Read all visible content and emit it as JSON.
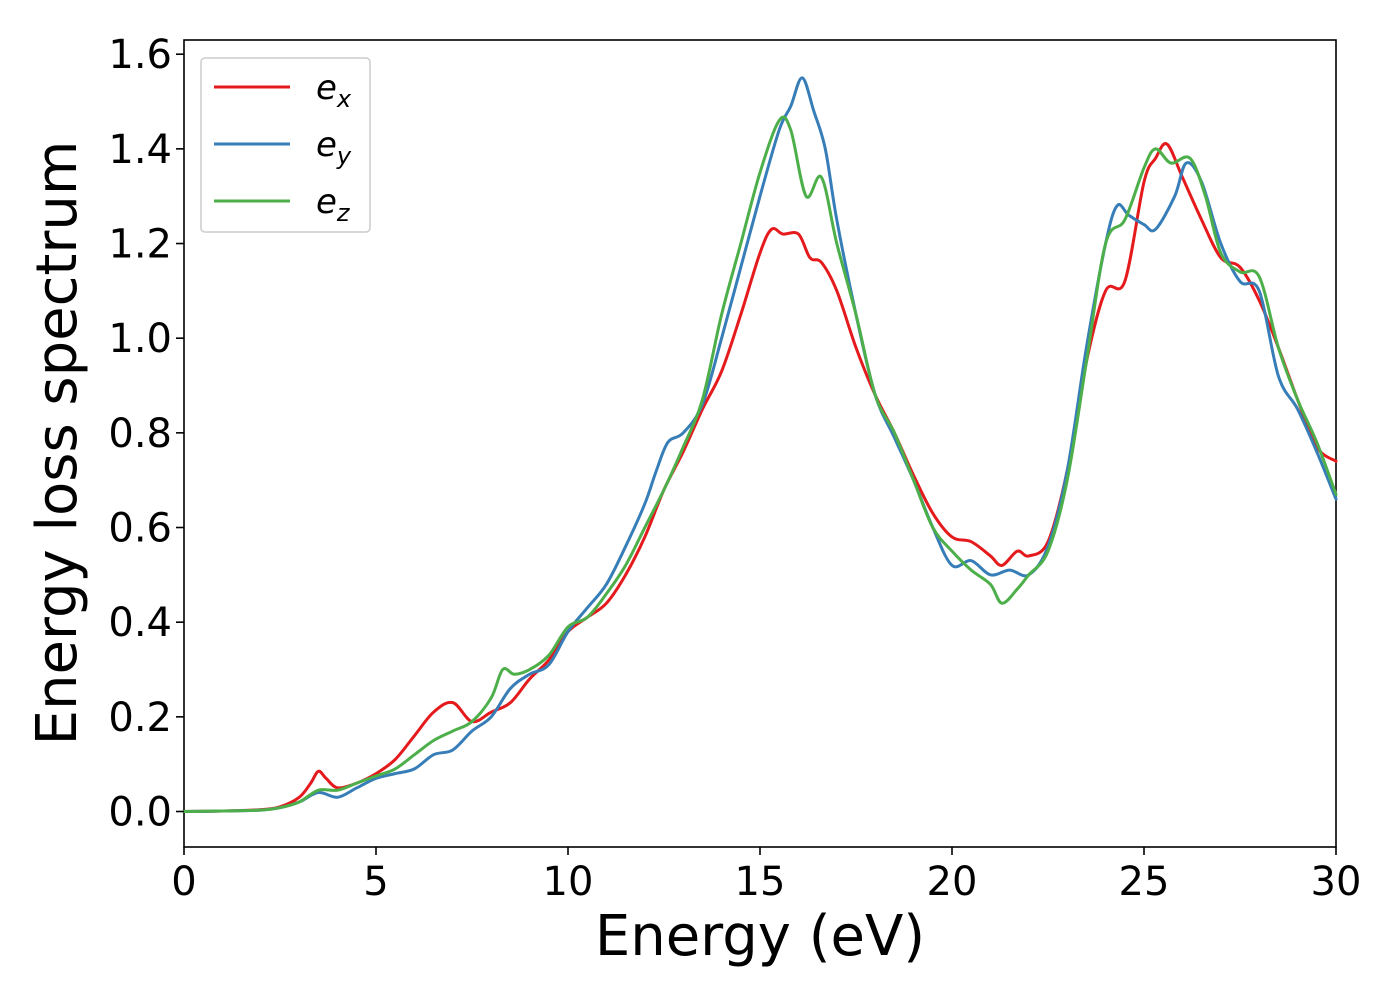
{
  "chart_data": {
    "type": "line",
    "title": "",
    "xlabel": "Energy (eV)",
    "ylabel": "Energy loss spectrum",
    "xlim": [
      0,
      30
    ],
    "ylim": [
      -0.075,
      1.63
    ],
    "xticks": [
      0,
      5,
      10,
      15,
      20,
      25,
      30
    ],
    "xtick_labels": [
      "0",
      "5",
      "10",
      "15",
      "20",
      "25",
      "30"
    ],
    "yticks": [
      0.0,
      0.2,
      0.4,
      0.6,
      0.8,
      1.0,
      1.2,
      1.4,
      1.6
    ],
    "ytick_labels": [
      "0.0",
      "0.2",
      "0.4",
      "0.6",
      "0.8",
      "1.0",
      "1.2",
      "1.4",
      "1.6"
    ],
    "grid": false,
    "legend_position": "top-left",
    "series": [
      {
        "name": "e_x",
        "label_base": "e",
        "label_sub": "x",
        "color": "#e41a1c",
        "x": [
          0,
          1,
          2,
          2.5,
          3,
          3.3,
          3.5,
          3.7,
          4,
          4.5,
          5,
          5.5,
          6,
          6.5,
          7,
          7.5,
          8,
          8.5,
          9,
          9.5,
          10,
          10.5,
          11,
          11.5,
          12,
          12.5,
          13,
          13.5,
          14,
          14.5,
          15,
          15.3,
          15.6,
          16,
          16.3,
          16.6,
          17,
          17.5,
          18,
          18.5,
          19,
          19.5,
          20,
          20.5,
          21,
          21.3,
          21.7,
          22,
          22.5,
          23,
          23.5,
          24,
          24.5,
          25,
          25.3,
          25.6,
          26,
          26.5,
          27,
          27.5,
          28,
          28.5,
          29,
          29.5,
          30
        ],
        "y": [
          0,
          0.001,
          0.004,
          0.01,
          0.03,
          0.06,
          0.085,
          0.07,
          0.05,
          0.06,
          0.08,
          0.11,
          0.16,
          0.21,
          0.23,
          0.19,
          0.21,
          0.23,
          0.28,
          0.32,
          0.38,
          0.41,
          0.44,
          0.5,
          0.58,
          0.68,
          0.76,
          0.85,
          0.93,
          1.05,
          1.18,
          1.23,
          1.22,
          1.22,
          1.17,
          1.16,
          1.1,
          0.98,
          0.88,
          0.8,
          0.71,
          0.63,
          0.58,
          0.57,
          0.54,
          0.52,
          0.55,
          0.54,
          0.57,
          0.72,
          0.95,
          1.1,
          1.12,
          1.33,
          1.38,
          1.41,
          1.34,
          1.25,
          1.17,
          1.15,
          1.08,
          0.98,
          0.87,
          0.77,
          0.74
        ]
      },
      {
        "name": "e_y",
        "label_base": "e",
        "label_sub": "y",
        "color": "#377eb8",
        "x": [
          0,
          1,
          2,
          2.5,
          3,
          3.5,
          4,
          4.5,
          5,
          5.5,
          6,
          6.5,
          7,
          7.5,
          8,
          8.5,
          9,
          9.5,
          10,
          10.5,
          11,
          11.5,
          12,
          12.3,
          12.6,
          13,
          13.5,
          14,
          14.5,
          15,
          15.5,
          15.8,
          16.1,
          16.4,
          16.7,
          17,
          17.5,
          18,
          18.5,
          19,
          19.5,
          20,
          20.5,
          21,
          21.5,
          22,
          22.5,
          23,
          23.5,
          24,
          24.3,
          24.6,
          25,
          25.3,
          25.8,
          26.1,
          26.5,
          27,
          27.5,
          28,
          28.5,
          29,
          29.5,
          30
        ],
        "y": [
          0,
          0.001,
          0.003,
          0.008,
          0.02,
          0.04,
          0.03,
          0.05,
          0.07,
          0.08,
          0.09,
          0.12,
          0.13,
          0.17,
          0.2,
          0.26,
          0.29,
          0.31,
          0.38,
          0.43,
          0.48,
          0.56,
          0.65,
          0.72,
          0.78,
          0.8,
          0.86,
          1.0,
          1.15,
          1.3,
          1.44,
          1.49,
          1.55,
          1.48,
          1.4,
          1.25,
          1.05,
          0.88,
          0.79,
          0.7,
          0.6,
          0.52,
          0.53,
          0.5,
          0.51,
          0.5,
          0.56,
          0.72,
          0.98,
          1.2,
          1.28,
          1.26,
          1.24,
          1.23,
          1.3,
          1.37,
          1.33,
          1.2,
          1.12,
          1.1,
          0.92,
          0.85,
          0.76,
          0.66
        ]
      },
      {
        "name": "e_z",
        "label_base": "e",
        "label_sub": "z",
        "color": "#4daf4a",
        "x": [
          0,
          1,
          2,
          2.5,
          3,
          3.5,
          4,
          4.5,
          5,
          5.5,
          6,
          6.5,
          7,
          7.5,
          8,
          8.3,
          8.6,
          9,
          9.5,
          10,
          10.5,
          11,
          11.5,
          12,
          12.5,
          13,
          13.5,
          14,
          14.5,
          15,
          15.5,
          15.8,
          16.2,
          16.6,
          17,
          17.5,
          18,
          18.5,
          19,
          19.5,
          20,
          20.5,
          21,
          21.3,
          21.7,
          22,
          22.5,
          23,
          23.5,
          24,
          24.5,
          25,
          25.3,
          25.7,
          26.2,
          26.6,
          27,
          27.5,
          28,
          28.5,
          29,
          29.5,
          30
        ],
        "y": [
          0,
          0.001,
          0.003,
          0.008,
          0.02,
          0.045,
          0.045,
          0.06,
          0.075,
          0.09,
          0.12,
          0.15,
          0.17,
          0.19,
          0.24,
          0.3,
          0.29,
          0.3,
          0.33,
          0.39,
          0.41,
          0.46,
          0.52,
          0.6,
          0.68,
          0.77,
          0.87,
          1.05,
          1.2,
          1.35,
          1.46,
          1.44,
          1.3,
          1.34,
          1.2,
          1.05,
          0.88,
          0.8,
          0.7,
          0.6,
          0.55,
          0.51,
          0.48,
          0.44,
          0.47,
          0.5,
          0.55,
          0.7,
          0.95,
          1.2,
          1.25,
          1.36,
          1.4,
          1.37,
          1.38,
          1.3,
          1.18,
          1.14,
          1.13,
          0.98,
          0.87,
          0.78,
          0.67
        ]
      }
    ]
  }
}
